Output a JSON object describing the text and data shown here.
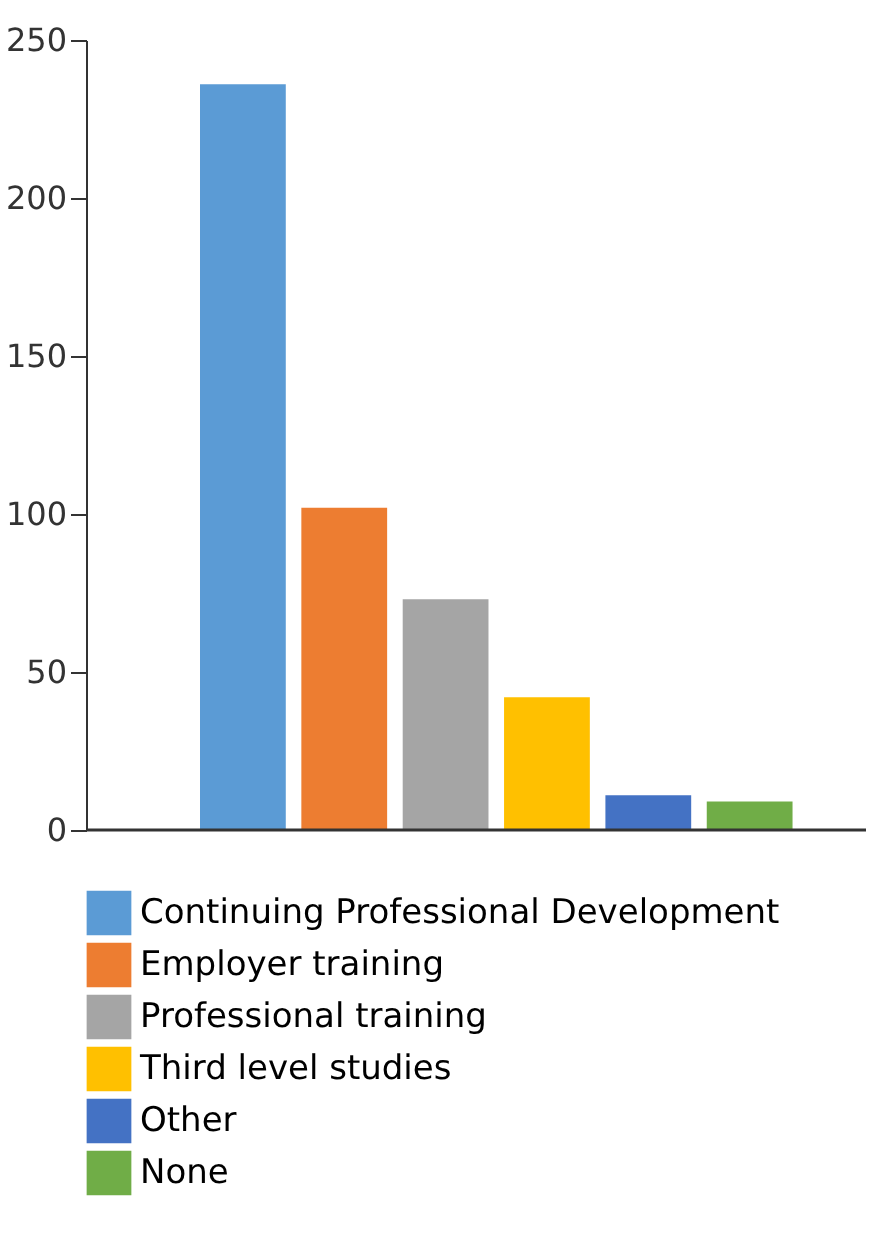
{
  "chart_data": {
    "type": "bar",
    "categories": [
      null
    ],
    "series": [
      {
        "name": "Continuing Professional Development",
        "color": "#5b9bd5",
        "values": [
          236
        ]
      },
      {
        "name": "Employer training",
        "color": "#ed7d31",
        "values": [
          102
        ]
      },
      {
        "name": "Professional training",
        "color": "#a5a5a5",
        "values": [
          73
        ]
      },
      {
        "name": "Third level studies",
        "color": "#ffc000",
        "values": [
          42
        ]
      },
      {
        "name": "Other",
        "color": "#4472c4",
        "values": [
          11
        ]
      },
      {
        "name": "None",
        "color": "#70ad47",
        "values": [
          9
        ]
      }
    ],
    "ylim": [
      0,
      250
    ],
    "yticks": [
      0,
      50,
      100,
      150,
      200,
      250
    ],
    "grid": false,
    "legend": "bottom"
  }
}
